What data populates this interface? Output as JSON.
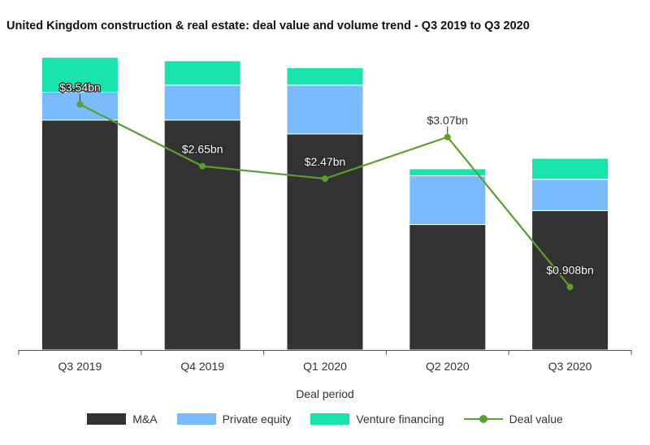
{
  "chart_data": {
    "type": "bar",
    "title": "United Kingdom construction & real estate: deal value and volume trend - Q3 2019 to Q3 2020",
    "xlabel": "Deal period",
    "ylabel": "",
    "categories": [
      "Q3 2019",
      "Q4 2019",
      "Q1 2020",
      "Q2 2020",
      "Q3 2020"
    ],
    "ylim": [
      0,
      43
    ],
    "series": [
      {
        "name": "M&A",
        "type": "bar",
        "stack": "volume",
        "color": "#333333",
        "values": [
          33,
          33,
          31,
          18,
          20
        ]
      },
      {
        "name": "Private equity",
        "type": "bar",
        "stack": "volume",
        "color": "#7abbff",
        "values": [
          4,
          5,
          7,
          7,
          4.5
        ]
      },
      {
        "name": "Venture financing",
        "type": "bar",
        "stack": "volume",
        "color": "#19e3ad",
        "values": [
          5,
          3.5,
          2.5,
          1,
          3
        ]
      },
      {
        "name": "Deal value",
        "type": "line",
        "color": "#5aa02c",
        "values": [
          3.54,
          2.65,
          2.47,
          3.07,
          0.908
        ],
        "labels": [
          "$3.54bn",
          "$2.65bn",
          "$2.47bn",
          "$3.07bn",
          "$0.908bn"
        ],
        "ylim": [
          0,
          4.32
        ]
      }
    ],
    "legend": {
      "position": "bottom"
    },
    "grid": false
  }
}
